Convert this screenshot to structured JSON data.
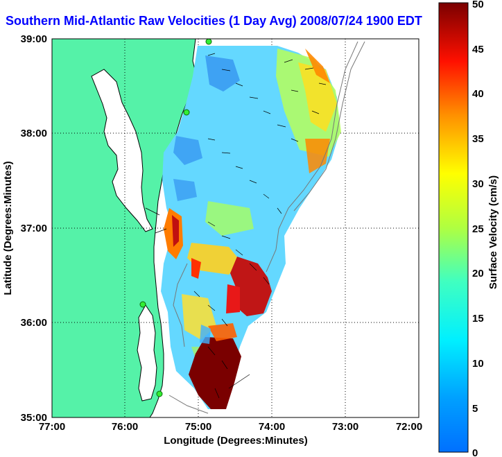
{
  "title": "Southern Mid-Atlantic Raw Velocities (1 Day Avg) 2008/07/24 1900 EDT",
  "xaxis": {
    "label": "Longitude (Degrees:Minutes)",
    "ticks": [
      "77:00",
      "76:00",
      "75:00",
      "74:00",
      "73:00",
      "72:00"
    ]
  },
  "yaxis": {
    "label": "Latitude (Degrees:Minutes)",
    "ticks": [
      "39:00",
      "38:00",
      "37:00",
      "36:00",
      "35:00"
    ]
  },
  "colorbar": {
    "label": "Surface Velocity (cm/s)",
    "ticks": [
      "50",
      "45",
      "40",
      "35",
      "30",
      "25",
      "20",
      "15",
      "10",
      "5",
      "0"
    ],
    "min": 0,
    "max": 50
  },
  "colors": {
    "land": "#55f2a8",
    "title": "#0000ff",
    "station": "#33ee33"
  },
  "chart_data": {
    "type": "heatmap",
    "title": "Southern Mid-Atlantic Raw Velocities (1 Day Avg) 2008/07/24 1900 EDT",
    "xlabel": "Longitude (Degrees:Minutes)",
    "ylabel": "Latitude (Degrees:Minutes)",
    "xlim": [
      -77,
      -72
    ],
    "ylim": [
      35,
      39
    ],
    "colorbar_range": [
      0,
      50
    ],
    "colorbar_label": "Surface Velocity (cm/s)",
    "grid": true
  }
}
